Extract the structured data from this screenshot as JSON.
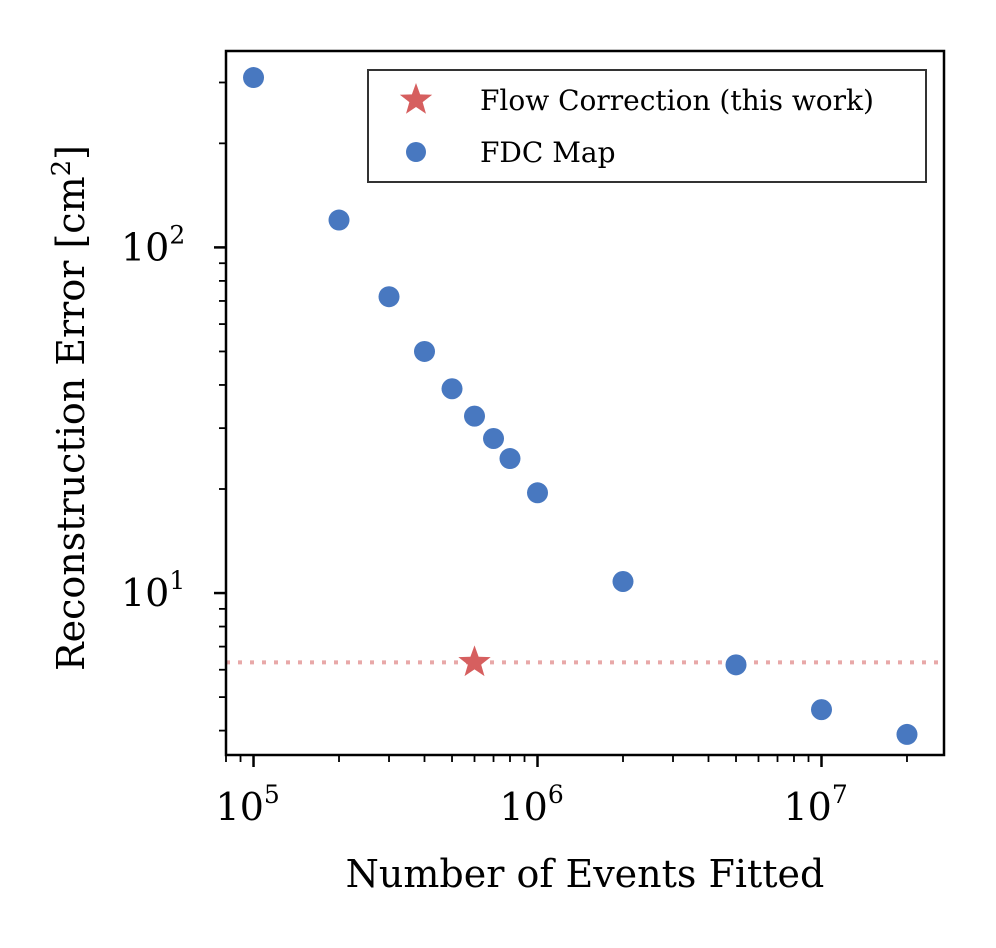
{
  "chart_data": {
    "type": "scatter",
    "xscale": "log",
    "yscale": "log",
    "xlim": [
      80000,
      27000000
    ],
    "ylim": [
      3.4,
      370
    ],
    "xlabel": "Number of Events Fitted",
    "ylabel": "Reconstruction Error [cm",
    "ylabel_sup": "2",
    "ylabel_close": "]",
    "x_ticks": [
      {
        "base": "10",
        "exp": "5",
        "value": 100000
      },
      {
        "base": "10",
        "exp": "6",
        "value": 1000000
      },
      {
        "base": "10",
        "exp": "7",
        "value": 10000000
      }
    ],
    "y_ticks": [
      {
        "base": "10",
        "exp": "1",
        "value": 10
      },
      {
        "base": "10",
        "exp": "2",
        "value": 100
      }
    ],
    "series": [
      {
        "name": "Flow Correction (this work)",
        "marker": "star",
        "color": "#d65f5f",
        "points": [
          {
            "x": 600000,
            "y": 6.3
          }
        ]
      },
      {
        "name": "FDC Map",
        "marker": "circle",
        "color": "#4878c0",
        "points": [
          {
            "x": 100000,
            "y": 310
          },
          {
            "x": 200000,
            "y": 120
          },
          {
            "x": 300000,
            "y": 72
          },
          {
            "x": 400000,
            "y": 50
          },
          {
            "x": 500000,
            "y": 39
          },
          {
            "x": 600000,
            "y": 32.5
          },
          {
            "x": 700000,
            "y": 28
          },
          {
            "x": 800000,
            "y": 24.5
          },
          {
            "x": 1000000,
            "y": 19.5
          },
          {
            "x": 2000000,
            "y": 10.8
          },
          {
            "x": 5000000,
            "y": 6.2
          },
          {
            "x": 10000000,
            "y": 4.6
          },
          {
            "x": 20000000,
            "y": 3.9
          }
        ]
      }
    ],
    "reference_line": {
      "y": 6.3,
      "color": "#e8a8a8",
      "style": "dotted"
    },
    "legend": {
      "placement": "top-right",
      "entries": [
        "Flow Correction (this work)",
        "FDC Map"
      ]
    }
  }
}
